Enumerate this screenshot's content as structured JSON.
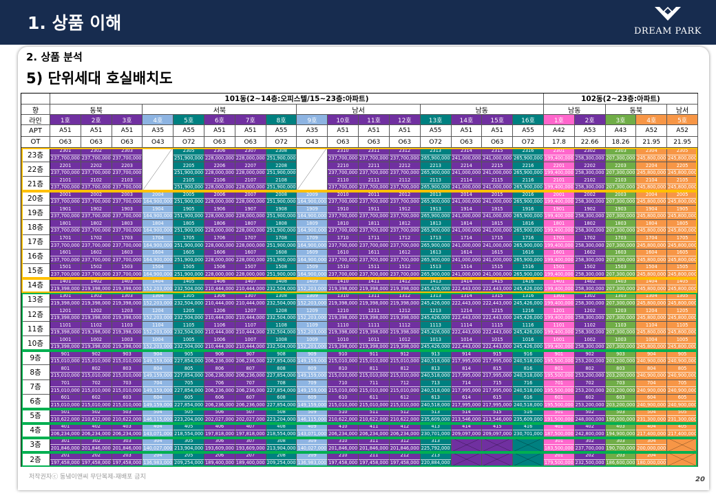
{
  "header": {
    "title": "1. 상품 이해",
    "logo_text": "DREAM PARK"
  },
  "section": {
    "subtitle": "2. 상품 분석",
    "title": "5) 단위세대 호실배치도"
  },
  "table": {
    "building_101_label": "101동(2~14층:오피스텔/15~23층:아파트)",
    "building_102_label": "102동(2~23층:아파트)",
    "labels": {
      "direction": "향",
      "line": "라인",
      "apt": "APT",
      "ot": "OT"
    },
    "direction_groups": [
      "동북",
      "서북",
      "남서",
      "남동",
      "남동",
      "동북",
      "남서"
    ],
    "columns": [
      {
        "line": "1호",
        "apt": "A51",
        "ot": "O63",
        "color": "#7030a0"
      },
      {
        "line": "2호",
        "apt": "A51",
        "ot": "O63",
        "color": "#7030a0"
      },
      {
        "line": "3호",
        "apt": "A51",
        "ot": "O63",
        "color": "#7030a0"
      },
      {
        "line": "4호",
        "apt": "A35",
        "ot": "O43",
        "color": "#8db4e2"
      },
      {
        "line": "5호",
        "apt": "A55",
        "ot": "O72",
        "color": "#008080"
      },
      {
        "line": "6호",
        "apt": "A51",
        "ot": "O63",
        "color": "#7030a0"
      },
      {
        "line": "7호",
        "apt": "A51",
        "ot": "O63",
        "color": "#7030a0"
      },
      {
        "line": "8호",
        "apt": "A55",
        "ot": "O72",
        "color": "#008080"
      },
      {
        "line": "9호",
        "apt": "A35",
        "ot": "O43",
        "color": "#8db4e2"
      },
      {
        "line": "10호",
        "apt": "A51",
        "ot": "O63",
        "color": "#7030a0"
      },
      {
        "line": "11호",
        "apt": "A51",
        "ot": "O63",
        "color": "#7030a0"
      },
      {
        "line": "12호",
        "apt": "A51",
        "ot": "O63",
        "color": "#7030a0"
      },
      {
        "line": "13호",
        "apt": "A55",
        "ot": "O72",
        "color": "#008080"
      },
      {
        "line": "14호",
        "apt": "A51",
        "ot": "O63",
        "color": "#7030a0"
      },
      {
        "line": "15호",
        "apt": "A51",
        "ot": "O63",
        "color": "#7030a0"
      },
      {
        "line": "16호",
        "apt": "A55",
        "ot": "O72",
        "color": "#008080"
      },
      {
        "line": "1호",
        "apt": "A42",
        "ot": "17.8",
        "color": "#ff66cc"
      },
      {
        "line": "2호",
        "apt": "A53",
        "ot": "22.66",
        "color": "#7030a0"
      },
      {
        "line": "3호",
        "apt": "A43",
        "ot": "18.26",
        "color": "#70ad47"
      },
      {
        "line": "4호",
        "apt": "A52",
        "ot": "21.95",
        "color": "#f79646"
      },
      {
        "line": "5호",
        "apt": "A52",
        "ot": "21.95",
        "color": "#f79646"
      }
    ],
    "floor_groups": [
      {
        "floors": [
          "23층",
          "22층",
          "21층"
        ],
        "prices": [
          "237,700,000",
          "237,700,000",
          "237,700,000",
          "",
          "251,900,000",
          "228,000,000",
          "228,000,000",
          "251,900,000",
          "",
          "237,700,000",
          "237,700,000",
          "237,700,000",
          "265,900,000",
          "241,000,000",
          "241,000,000",
          "265,900,000",
          "199,400,000",
          "258,300,000",
          "207,300,000",
          "245,800,000",
          "245,800,000"
        ]
      },
      {
        "floors": [
          "20층",
          "19층",
          "18층",
          "17층",
          "16층",
          "15층"
        ],
        "prices": [
          "237,700,000",
          "237,700,000",
          "237,700,000",
          "164,900,000",
          "251,900,000",
          "228,000,000",
          "228,000,000",
          "251,900,000",
          "164,900,000",
          "237,700,000",
          "237,700,000",
          "237,700,000",
          "265,900,000",
          "241,000,000",
          "241,000,000",
          "265,900,000",
          "199,400,000",
          "258,300,000",
          "207,300,000",
          "245,800,000",
          "245,800,000"
        ]
      },
      {
        "floors": [
          "14층"
        ],
        "prices": [
          "219,398,000",
          "219,398,000",
          "219,398,000",
          "152,203,000",
          "232,504,000",
          "210,444,000",
          "210,444,000",
          "232,504,000",
          "152,203,000",
          "219,398,000",
          "219,398,000",
          "219,398,000",
          "245,426,000",
          "222,443,000",
          "222,443,000",
          "245,426,000",
          "199,400,000",
          "258,300,000",
          "207,300,000",
          "245,800,000",
          "245,800,000"
        ]
      },
      {
        "floors": [
          "13층",
          "12층",
          "11층",
          "10층"
        ],
        "prices": [
          "219,398,000",
          "219,398,000",
          "219,398,000",
          "152,203,000",
          "232,504,000",
          "210,444,000",
          "210,444,000",
          "232,504,000",
          "152,203,000",
          "219,398,000",
          "219,398,000",
          "219,398,000",
          "245,426,000",
          "222,443,000",
          "222,443,000",
          "245,426,000",
          "199,400,000",
          "258,300,000",
          "207,300,000",
          "245,800,000",
          "245,800,000"
        ]
      },
      {
        "floors": [
          "9층",
          "8층",
          "7층",
          "6층"
        ],
        "prices": [
          "215,010,000",
          "215,010,000",
          "215,010,000",
          "149,159,000",
          "227,854,000",
          "206,236,000",
          "206,236,000",
          "227,854,000",
          "149,159,000",
          "215,010,000",
          "215,010,000",
          "215,010,000",
          "240,518,000",
          "217,995,000",
          "217,995,000",
          "240,518,000",
          "195,500,000",
          "253,200,000",
          "203,200,000",
          "240,900,000",
          "240,900,000"
        ]
      },
      {
        "floors": [
          "5층"
        ],
        "prices": [
          "210,622,000",
          "210,622,000",
          "210,622,000",
          "146,115,000",
          "223,204,000",
          "202,027,000",
          "202,027,000",
          "223,204,000",
          "146,115,000",
          "210,622,000",
          "210,622,000",
          "210,622,000",
          "235,609,000",
          "213,546,000",
          "213,546,000",
          "235,609,000",
          "191,500,000",
          "248,000,000",
          "199,000,000",
          "231,300,000",
          "231,300,000"
        ]
      },
      {
        "floors": [
          "4층"
        ],
        "prices": [
          "206,234,000",
          "206,234,000",
          "206,234,000",
          "143,071,000",
          "218,554,000",
          "197,818,000",
          "197,818,000",
          "218,554,000",
          "143,071,000",
          "206,234,000",
          "206,234,000",
          "206,234,000",
          "230,701,000",
          "209,097,000",
          "209,097,000",
          "230,701,000",
          "187,500,000",
          "242,800,000",
          "194,900,000",
          "217,400,000",
          "217,400,000"
        ]
      },
      {
        "floors": [
          "3층"
        ],
        "prices": [
          "201,846,000",
          "201,846,000",
          "201,846,000",
          "140,027,000",
          "213,904,000",
          "193,609,000",
          "193,609,000",
          "213,904,000",
          "140,027,000",
          "201,846,000",
          "201,846,000",
          "201,846,000",
          "225,792,000",
          "",
          "",
          "",
          "183,500,000",
          "237,700,000",
          "190,700,000",
          "200,000,000",
          ""
        ]
      },
      {
        "floors": [
          "2층"
        ],
        "prices": [
          "197,458,000",
          "197,458,000",
          "197,458,000",
          "136,983,000",
          "209,254,000",
          "189,400,000",
          "189,400,000",
          "209,254,000",
          "136,983,000",
          "197,458,000",
          "197,458,000",
          "197,458,000",
          "220,884,000",
          "",
          "",
          "",
          "179,500,000",
          "232,500,000",
          "186,600,000",
          "180,000,000",
          ""
        ]
      }
    ]
  },
  "footer": {
    "copyright": "저작권자ⓒ 동녘이앤씨 무단복제-재배포 금지",
    "page_number": "20"
  }
}
